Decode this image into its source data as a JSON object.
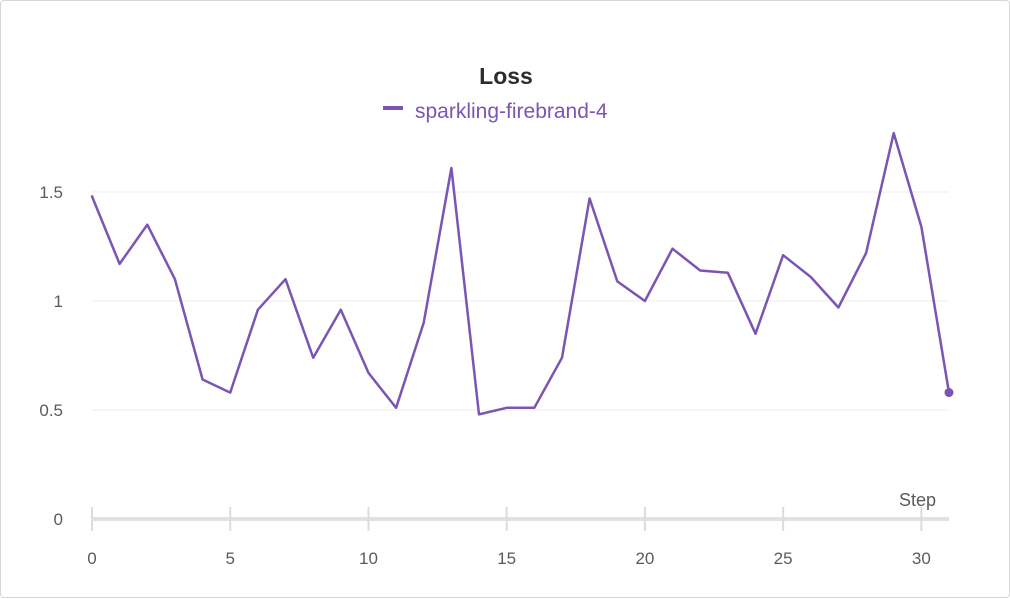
{
  "chart_data": {
    "type": "line",
    "title": "Loss",
    "xlabel": "Step",
    "ylabel": "",
    "xlim": [
      0,
      31
    ],
    "ylim": [
      0,
      1.8
    ],
    "x_ticks": [
      0,
      5,
      10,
      15,
      20,
      25,
      30
    ],
    "y_ticks": [
      0,
      0.5,
      1,
      1.5
    ],
    "y_tick_labels": [
      "0",
      "0.5",
      "1",
      "1.5"
    ],
    "grid": true,
    "legend_position": "top-center",
    "series": [
      {
        "name": "sparkling-firebrand-4",
        "color": "#7b55b3",
        "x": [
          0,
          1,
          2,
          3,
          4,
          5,
          6,
          7,
          8,
          9,
          10,
          11,
          12,
          13,
          14,
          15,
          16,
          17,
          18,
          19,
          20,
          21,
          22,
          23,
          24,
          25,
          26,
          27,
          28,
          29,
          30,
          31
        ],
        "values": [
          1.48,
          1.17,
          1.35,
          1.1,
          0.64,
          0.58,
          0.96,
          1.1,
          0.74,
          0.96,
          0.67,
          0.51,
          0.9,
          1.61,
          0.48,
          0.51,
          0.51,
          0.74,
          1.47,
          1.09,
          1.0,
          1.24,
          1.14,
          1.13,
          0.85,
          1.21,
          1.11,
          0.97,
          1.22,
          1.77,
          1.34,
          0.58
        ]
      }
    ]
  }
}
